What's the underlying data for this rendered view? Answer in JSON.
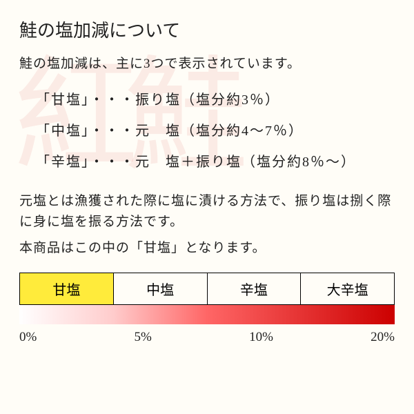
{
  "watermark_text": "紅鮭",
  "title": "鮭の塩加減について",
  "subtitle": "鮭の塩加減は、主に3つで表示されています。",
  "salt_levels": [
    {
      "name": "「甘塩」",
      "dots": "・・・",
      "method": "振り塩",
      "percent": "（塩分約3％）"
    },
    {
      "name": "「中塩」",
      "dots": "・・・",
      "method": "元　塩",
      "percent": "（塩分約4～7％）"
    },
    {
      "name": "「辛塩」",
      "dots": "・・・",
      "method": "元　塩＋振り塩",
      "percent": "（塩分約8％～）"
    }
  ],
  "description_line1": "元塩とは漁獲された際に塩に漬ける方法で、振り塩は捌く際に身に塩を振る方法です。",
  "description_line2": "本商品はこの中の「甘塩」となります。",
  "tabs": [
    {
      "label": "甘塩",
      "active": true
    },
    {
      "label": "中塩",
      "active": false
    },
    {
      "label": "辛塩",
      "active": false
    },
    {
      "label": "大辛塩",
      "active": false
    }
  ],
  "scale": {
    "labels": [
      "0%",
      "5%",
      "10%",
      "20%"
    ],
    "gradient_colors": [
      "#ffffff",
      "#ffcccc",
      "#ff6666",
      "#cc0000"
    ]
  },
  "colors": {
    "background": "#fffdf7",
    "text": "#222222",
    "active_tab": "#ffeb3b",
    "watermark": "rgba(200,30,30,0.08)"
  }
}
